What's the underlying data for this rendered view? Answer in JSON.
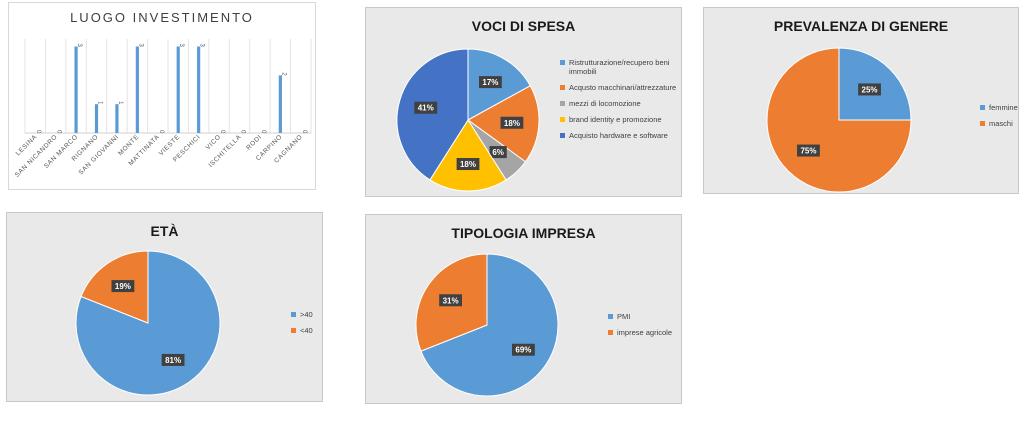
{
  "chart_data": [
    {
      "id": "luogo",
      "type": "bar",
      "title": "LUOGO  INVESTIMENTO",
      "categories": [
        "LESINA",
        "SAN NICANDRO",
        "SAN MARCO",
        "RIGNANO",
        "SAN GIOVANNI",
        "MONTE",
        "MATTINATA",
        "VIESTE",
        "PESCHICI",
        "VICO",
        "ISCHITELLA",
        "RODI",
        "CARPINO",
        "CAGNANO"
      ],
      "values": [
        0,
        0,
        3,
        1,
        1,
        3,
        0,
        3,
        3,
        0,
        0,
        0,
        2,
        0
      ],
      "ylim": [
        0,
        3.4
      ],
      "grid": "vertical",
      "color": "#5b9bd5"
    },
    {
      "id": "voci",
      "type": "pie",
      "title": "VOCI DI SPESA",
      "labels": [
        "Ristrutturazione/recupero beni immobili",
        "Acqusto macchinari/attrezzature",
        "mezzi di locomozione",
        "brand identity e promozione",
        "Acquisto hardware e software"
      ],
      "values": [
        17,
        18,
        6,
        18,
        41
      ],
      "value_labels": [
        "17%",
        "18%",
        "6%",
        "18%",
        "41%"
      ],
      "colors": [
        "#5b9bd5",
        "#ed7d31",
        "#a5a5a5",
        "#ffc000",
        "#4472c4"
      ],
      "legend": "right"
    },
    {
      "id": "genere",
      "type": "pie",
      "title": "PREVALENZA DI GENERE",
      "labels": [
        "femmine",
        "maschi"
      ],
      "values": [
        25,
        75
      ],
      "value_labels": [
        "25%",
        "75%"
      ],
      "colors": [
        "#5b9bd5",
        "#ed7d31"
      ],
      "legend": "right"
    },
    {
      "id": "eta",
      "type": "pie",
      "title": "ETÀ",
      "labels": [
        ">40",
        "<40"
      ],
      "values": [
        81,
        19
      ],
      "value_labels": [
        "81%",
        "19%"
      ],
      "colors": [
        "#5b9bd5",
        "#ed7d31"
      ],
      "legend": "right"
    },
    {
      "id": "tipo",
      "type": "pie",
      "title": "TIPOLOGIA IMPRESA",
      "labels": [
        "PMI",
        "imprese agricole"
      ],
      "values": [
        69,
        31
      ],
      "value_labels": [
        "69%",
        "31%"
      ],
      "colors": [
        "#5b9bd5",
        "#ed7d31"
      ],
      "legend": "right"
    }
  ]
}
